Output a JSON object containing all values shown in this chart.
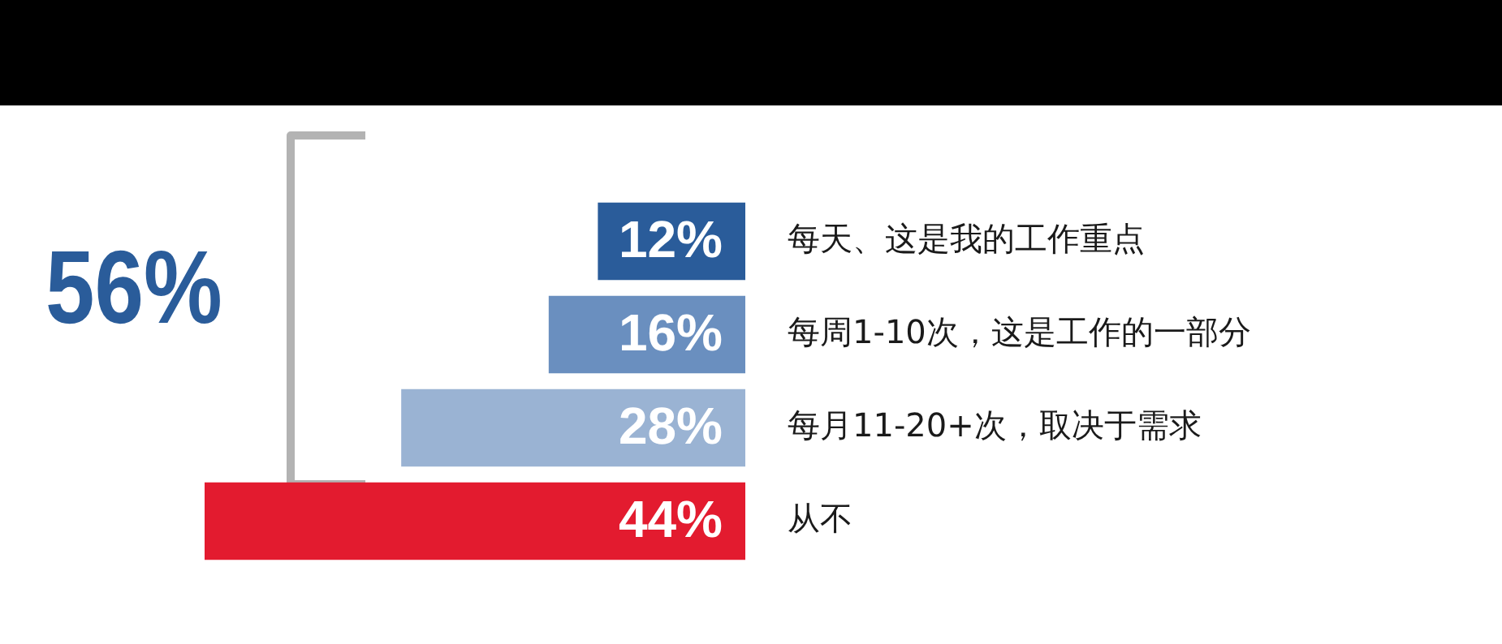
{
  "chart_data": {
    "type": "bar",
    "orientation": "horizontal",
    "categories": [
      "每天、这是我的工作重点",
      "每周1-10次，这是工作的一部分",
      "每月11-20+次，取决于需求",
      "从不"
    ],
    "values": [
      12,
      16,
      28,
      44
    ],
    "colors": [
      "#2a5c9a",
      "#6a8fbf",
      "#9ab3d3",
      "#e31b2f"
    ],
    "value_labels": [
      "12%",
      "16%",
      "28%",
      "44%"
    ],
    "legend": false,
    "grid": false,
    "annotations": [
      "56%"
    ]
  }
}
